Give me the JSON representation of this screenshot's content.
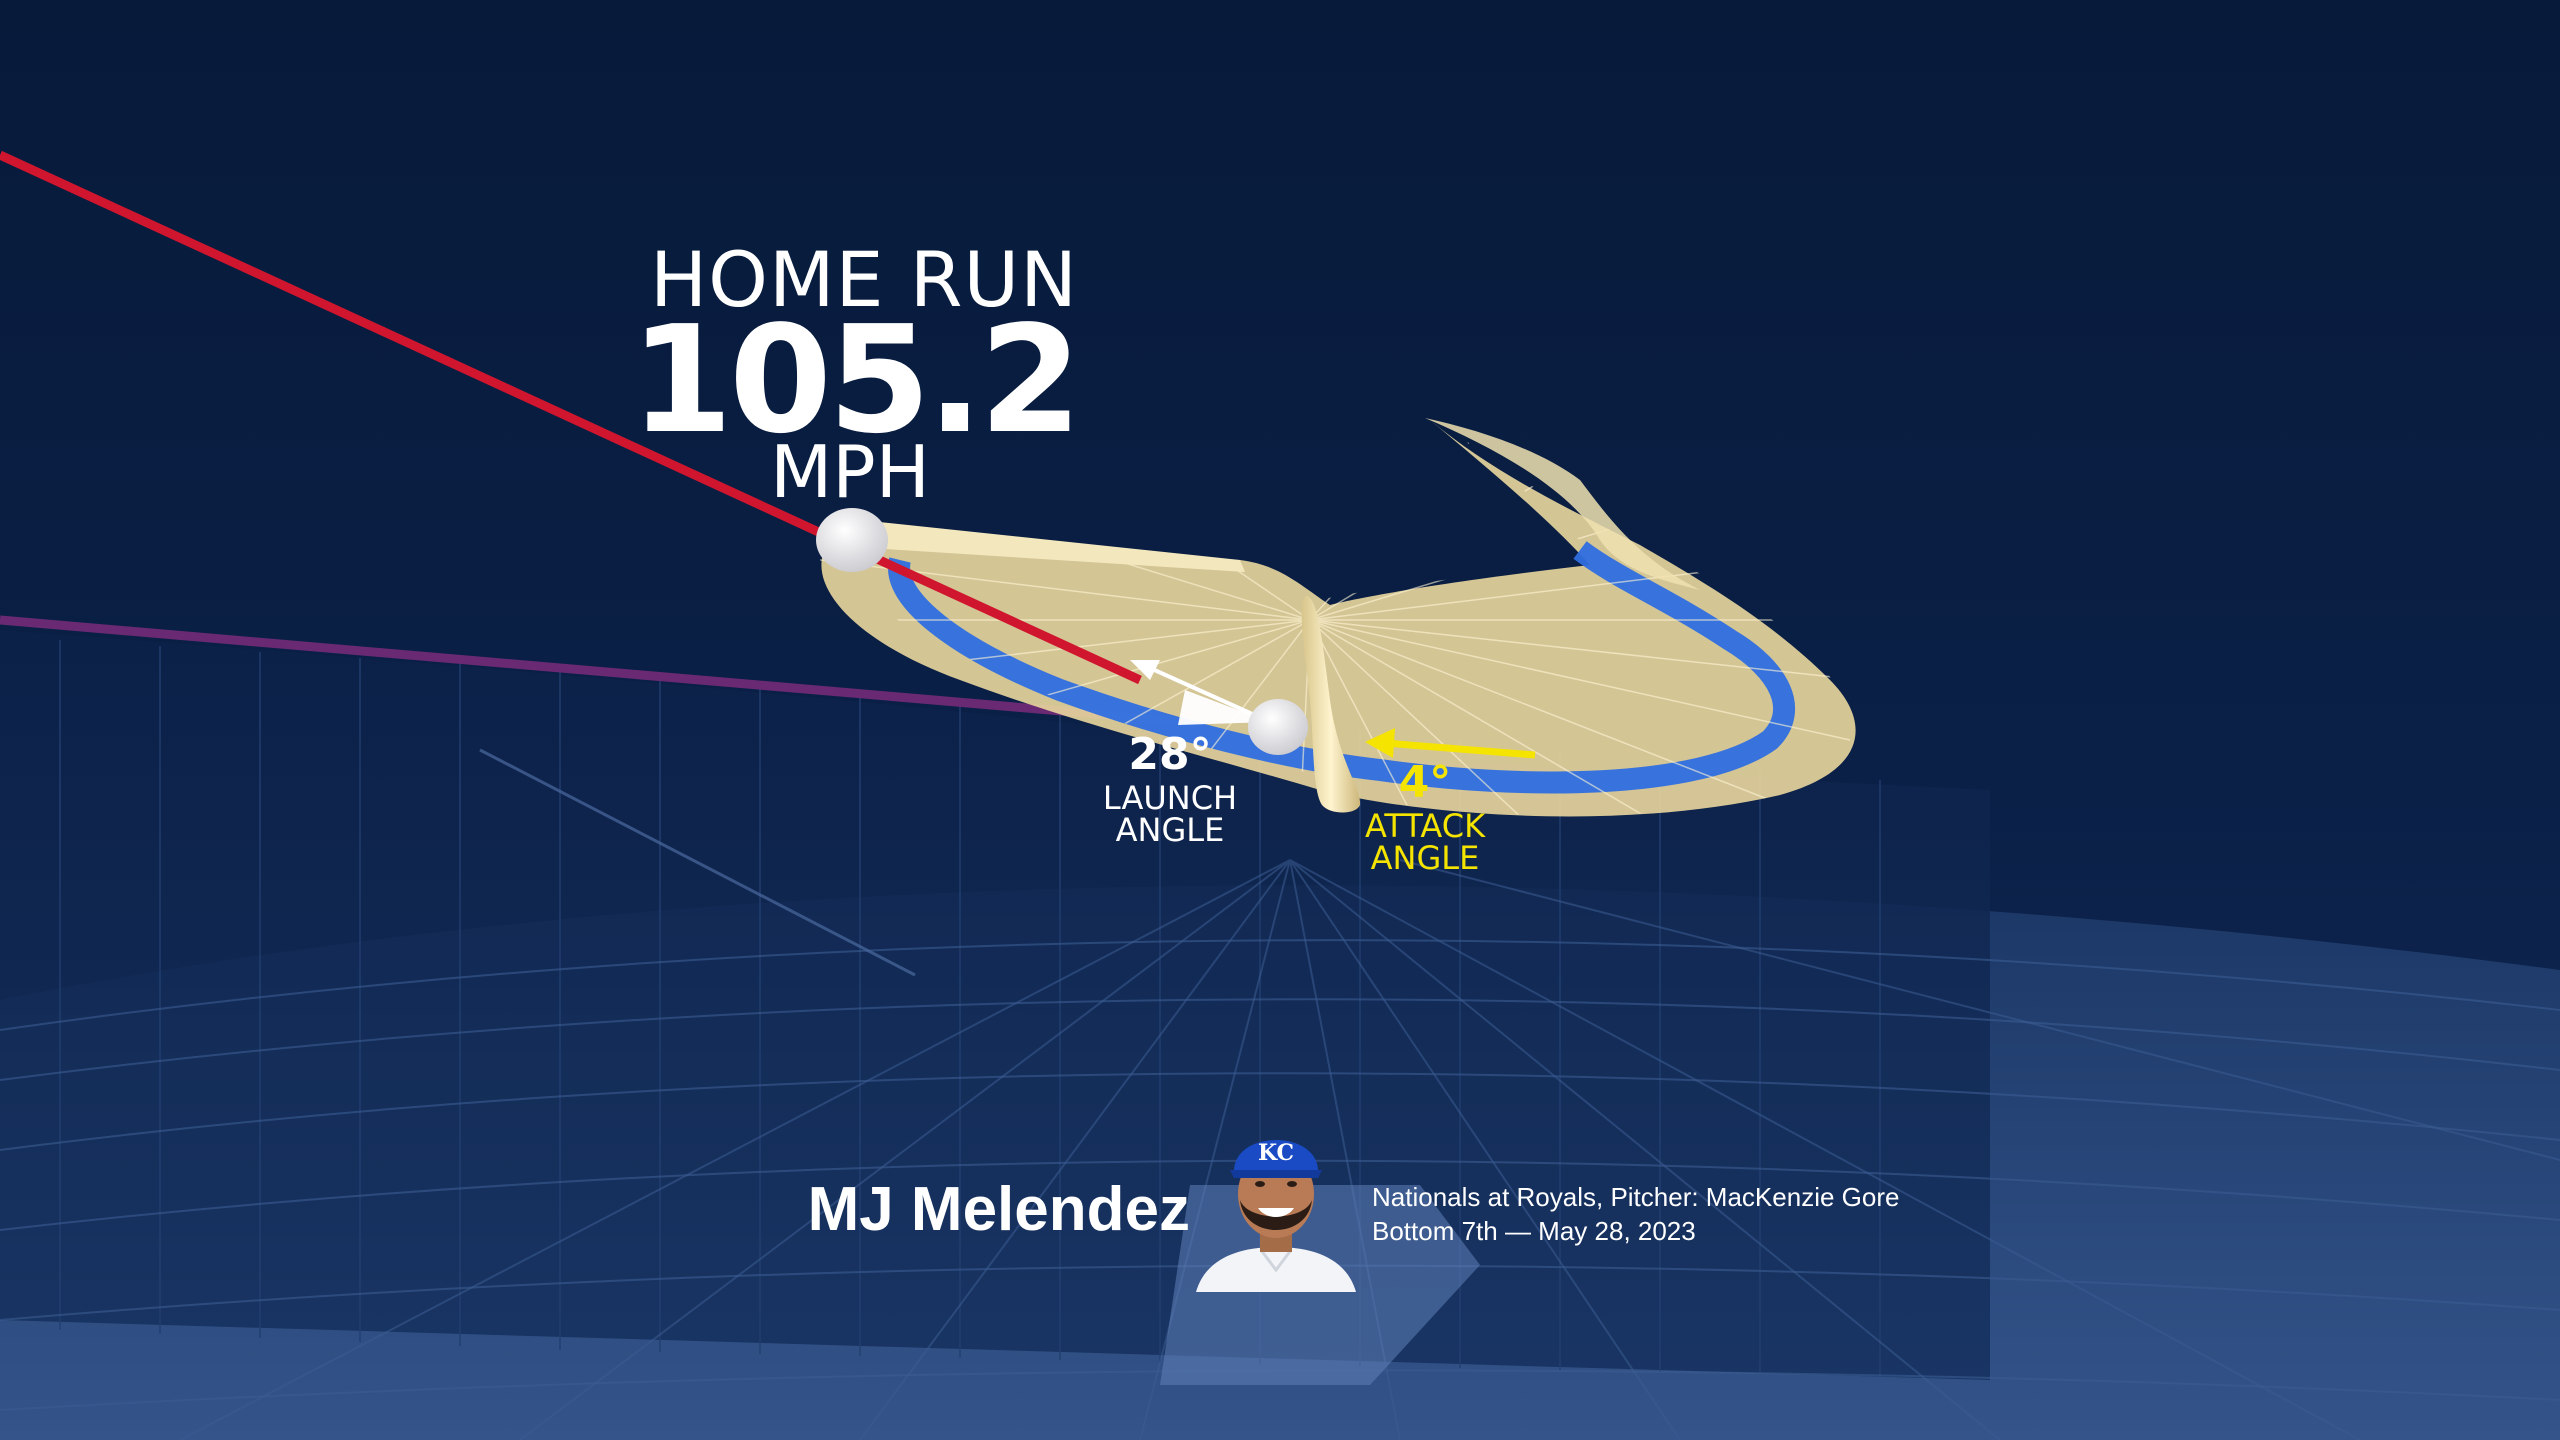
{
  "hit": {
    "result": "HOME RUN",
    "exit_velocity": "105.2",
    "unit": "MPH",
    "launch_angle": "28°",
    "launch_angle_label": "LAUNCH ANGLE",
    "attack_angle": "4°",
    "attack_angle_label": "ATTACK ANGLE"
  },
  "player": {
    "name": "MJ Melendez",
    "team_logo": "KC",
    "matchup": "Nationals at Royals, Pitcher: MacKenzie Gore",
    "inning_date": "Bottom 7th — May 28, 2023"
  },
  "icons": {
    "avatar": "player-headshot-icon",
    "ball": "baseball-icon",
    "bat": "bat-icon"
  },
  "colors": {
    "background": "#0b1d3f",
    "hit_trajectory": "#d0162e",
    "pitch_trajectory": "#6a2a73",
    "swing_path": "#e9d9a4",
    "swing_band": "#2f6fe0",
    "launch_text": "#ffffff",
    "attack_text": "#f5e400",
    "team_blue": "#1a4bc4"
  }
}
